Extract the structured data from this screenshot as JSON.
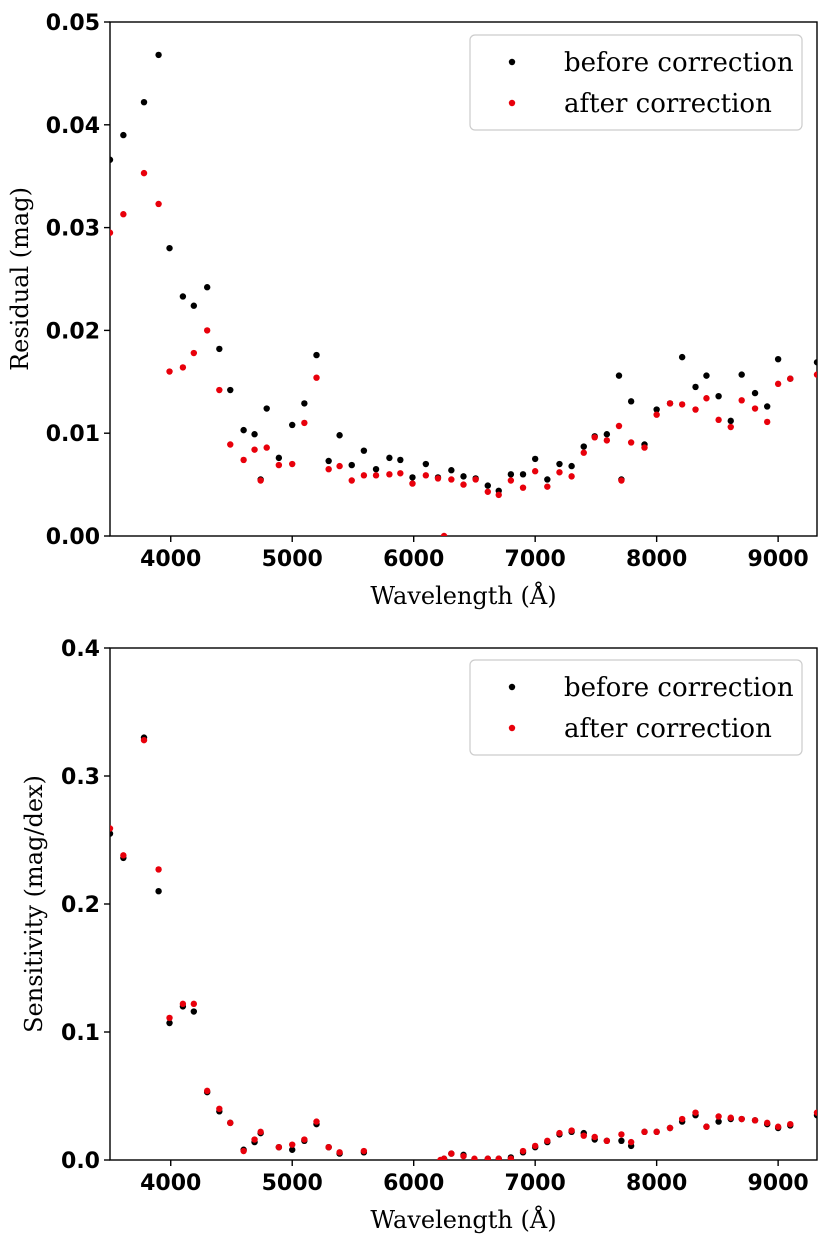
{
  "chart_data": [
    {
      "type": "scatter",
      "xlabel": "Wavelength (Å)",
      "ylabel": "Residual (mag)",
      "xlim": [
        3500,
        9320
      ],
      "ylim": [
        0,
        0.05
      ],
      "xticks": [
        4000,
        5000,
        6000,
        7000,
        8000,
        9000
      ],
      "xtick_labels": [
        "4000",
        "5000",
        "6000",
        "7000",
        "8000",
        "9000"
      ],
      "yticks": [
        0,
        0.01,
        0.02,
        0.03,
        0.04,
        0.05
      ],
      "ytick_labels": [
        "0.00",
        "0.01",
        "0.02",
        "0.03",
        "0.04",
        "0.05"
      ],
      "legend_position": "top-right",
      "series": [
        {
          "name": "before correction",
          "color": "#000000",
          "x": [
            3500,
            3610,
            3780,
            3900,
            3990,
            4100,
            4190,
            4300,
            4400,
            4490,
            4600,
            4690,
            4740,
            4790,
            4890,
            5000,
            5100,
            5200,
            5300,
            5390,
            5490,
            5590,
            5690,
            5800,
            5890,
            5990,
            6100,
            6200,
            6310,
            6410,
            6510,
            6610,
            6700,
            6800,
            6900,
            7000,
            7100,
            7200,
            7300,
            7400,
            7490,
            7590,
            7690,
            7710,
            7790,
            7900,
            8000,
            8110,
            8210,
            8320,
            8410,
            8510,
            8610,
            8700,
            8810,
            8910,
            9000,
            9100,
            9320
          ],
          "y": [
            0.0366,
            0.039,
            0.0422,
            0.0468,
            0.028,
            0.0233,
            0.0224,
            0.0242,
            0.0182,
            0.0142,
            0.0103,
            0.0099,
            0.0055,
            0.0124,
            0.0076,
            0.0108,
            0.0129,
            0.0176,
            0.0073,
            0.0098,
            0.0069,
            0.0083,
            0.0065,
            0.0076,
            0.0074,
            0.0057,
            0.007,
            0.0057,
            0.0064,
            0.0058,
            0.0056,
            0.0049,
            0.0044,
            0.006,
            0.006,
            0.0075,
            0.0055,
            0.007,
            0.0068,
            0.0087,
            0.0097,
            0.0099,
            0.0156,
            0.0055,
            0.0131,
            0.0089,
            0.0123,
            0.0129,
            0.0174,
            0.0145,
            0.0156,
            0.0136,
            0.0112,
            0.0157,
            0.0139,
            0.0126,
            0.0172,
            0.0153,
            0.0169
          ]
        },
        {
          "name": "after correction",
          "color": "#e8000b",
          "x": [
            3500,
            3610,
            3780,
            3900,
            3990,
            4100,
            4190,
            4300,
            4400,
            4490,
            4600,
            4690,
            4740,
            4790,
            4890,
            5000,
            5100,
            5200,
            5300,
            5390,
            5490,
            5590,
            5690,
            5800,
            5890,
            5990,
            6100,
            6200,
            6250,
            6310,
            6410,
            6510,
            6610,
            6700,
            6800,
            6900,
            7000,
            7100,
            7200,
            7300,
            7400,
            7490,
            7590,
            7690,
            7710,
            7790,
            7900,
            8000,
            8110,
            8210,
            8320,
            8410,
            8510,
            8610,
            8700,
            8810,
            8910,
            9000,
            9100,
            9320
          ],
          "y": [
            0.0295,
            0.0313,
            0.0353,
            0.0323,
            0.016,
            0.0164,
            0.0178,
            0.02,
            0.0142,
            0.0089,
            0.0074,
            0.0084,
            0.0054,
            0.0086,
            0.0069,
            0.007,
            0.011,
            0.0154,
            0.0065,
            0.0068,
            0.0054,
            0.0059,
            0.0059,
            0.006,
            0.0061,
            0.0051,
            0.0059,
            0.0056,
            0.0,
            0.0055,
            0.005,
            0.0055,
            0.0043,
            0.004,
            0.0054,
            0.0047,
            0.0063,
            0.0048,
            0.0062,
            0.0058,
            0.0081,
            0.0096,
            0.0093,
            0.0107,
            0.0054,
            0.0091,
            0.0086,
            0.0118,
            0.0129,
            0.0128,
            0.0123,
            0.0134,
            0.0113,
            0.0106,
            0.0132,
            0.0124,
            0.0111,
            0.0148,
            0.0153,
            0.0157
          ]
        }
      ]
    },
    {
      "type": "scatter",
      "xlabel": "Wavelength (Å)",
      "ylabel": "Sensitivity (mag/dex)",
      "xlim": [
        3500,
        9320
      ],
      "ylim": [
        0,
        0.4
      ],
      "xticks": [
        4000,
        5000,
        6000,
        7000,
        8000,
        9000
      ],
      "xtick_labels": [
        "4000",
        "5000",
        "6000",
        "7000",
        "8000",
        "9000"
      ],
      "yticks": [
        0,
        0.1,
        0.2,
        0.3,
        0.4
      ],
      "ytick_labels": [
        "0.0",
        "0.1",
        "0.2",
        "0.3",
        "0.4"
      ],
      "legend_position": "top-right",
      "series": [
        {
          "name": "before correction",
          "color": "#000000",
          "x": [
            3500,
            3610,
            3780,
            3900,
            3990,
            4100,
            4190,
            4300,
            4400,
            4490,
            4600,
            4690,
            4740,
            4890,
            5000,
            5100,
            5200,
            5300,
            5390,
            5590,
            6250,
            6310,
            6410,
            6610,
            6700,
            6800,
            6900,
            7000,
            7100,
            7200,
            7300,
            7400,
            7490,
            7590,
            7710,
            7790,
            7900,
            8000,
            8110,
            8210,
            8320,
            8410,
            8510,
            8610,
            8700,
            8810,
            8910,
            9000,
            9100,
            9320
          ],
          "y": [
            0.255,
            0.236,
            0.33,
            0.21,
            0.107,
            0.12,
            0.116,
            0.053,
            0.038,
            0.029,
            0.008,
            0.014,
            0.021,
            0.01,
            0.008,
            0.015,
            0.028,
            0.01,
            0.005,
            0.006,
            0.001,
            0.005,
            0.004,
            0.001,
            0.001,
            0.002,
            0.006,
            0.01,
            0.014,
            0.02,
            0.022,
            0.021,
            0.016,
            0.015,
            0.015,
            0.011,
            0.022,
            0.022,
            0.025,
            0.03,
            0.035,
            0.026,
            0.03,
            0.032,
            0.032,
            0.031,
            0.028,
            0.025,
            0.027,
            0.035
          ]
        },
        {
          "name": "after correction",
          "color": "#e8000b",
          "x": [
            3500,
            3610,
            3780,
            3900,
            3990,
            4100,
            4190,
            4300,
            4400,
            4490,
            4600,
            4690,
            4740,
            4890,
            5000,
            5100,
            5200,
            5300,
            5390,
            5590,
            6220,
            6250,
            6310,
            6410,
            6500,
            6610,
            6700,
            6800,
            6900,
            7000,
            7100,
            7200,
            7300,
            7400,
            7490,
            7590,
            7710,
            7790,
            7900,
            8000,
            8110,
            8210,
            8320,
            8410,
            8510,
            8610,
            8700,
            8810,
            8910,
            9000,
            9100,
            9320
          ],
          "y": [
            0.259,
            0.238,
            0.328,
            0.227,
            0.111,
            0.122,
            0.122,
            0.054,
            0.04,
            0.029,
            0.007,
            0.016,
            0.022,
            0.01,
            0.012,
            0.016,
            0.03,
            0.01,
            0.006,
            0.007,
            0.0,
            0.001,
            0.005,
            0.003,
            0.001,
            0.001,
            0.001,
            0.001,
            0.007,
            0.011,
            0.015,
            0.021,
            0.023,
            0.019,
            0.018,
            0.015,
            0.02,
            0.014,
            0.022,
            0.022,
            0.025,
            0.032,
            0.037,
            0.026,
            0.034,
            0.033,
            0.032,
            0.031,
            0.029,
            0.026,
            0.028,
            0.037
          ]
        }
      ]
    }
  ]
}
